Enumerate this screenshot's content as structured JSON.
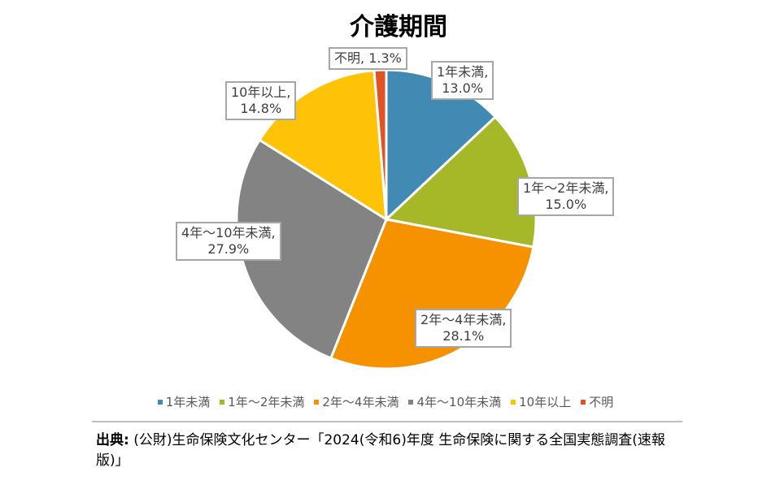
{
  "chart_data": {
    "type": "pie",
    "title": "介護期間",
    "start_angle_deg": 0,
    "direction": "clockwise",
    "slices": [
      {
        "label": "1年未満",
        "value": 13.0,
        "display": "13.0%",
        "color": "#418AB3"
      },
      {
        "label": "1年～2年未満",
        "value": 15.0,
        "display": "15.0%",
        "color": "#A6B727"
      },
      {
        "label": "2年～4年未満",
        "value": 28.1,
        "display": "28.1%",
        "color": "#F69200"
      },
      {
        "label": "4年～10年未満",
        "value": 27.9,
        "display": "27.9%",
        "color": "#838383"
      },
      {
        "label": "10年以上",
        "value": 14.8,
        "display": "14.8%",
        "color": "#FEC306"
      },
      {
        "label": "不明",
        "value": 1.3,
        "display": "1.3%",
        "color": "#DF5327"
      }
    ],
    "legend_position": "bottom"
  },
  "source": {
    "prefix": "出典:",
    "text": " (公財)生命保険文化センター「2024(令和6)年度 生命保険に関する全国実態調査(速報版)」"
  }
}
